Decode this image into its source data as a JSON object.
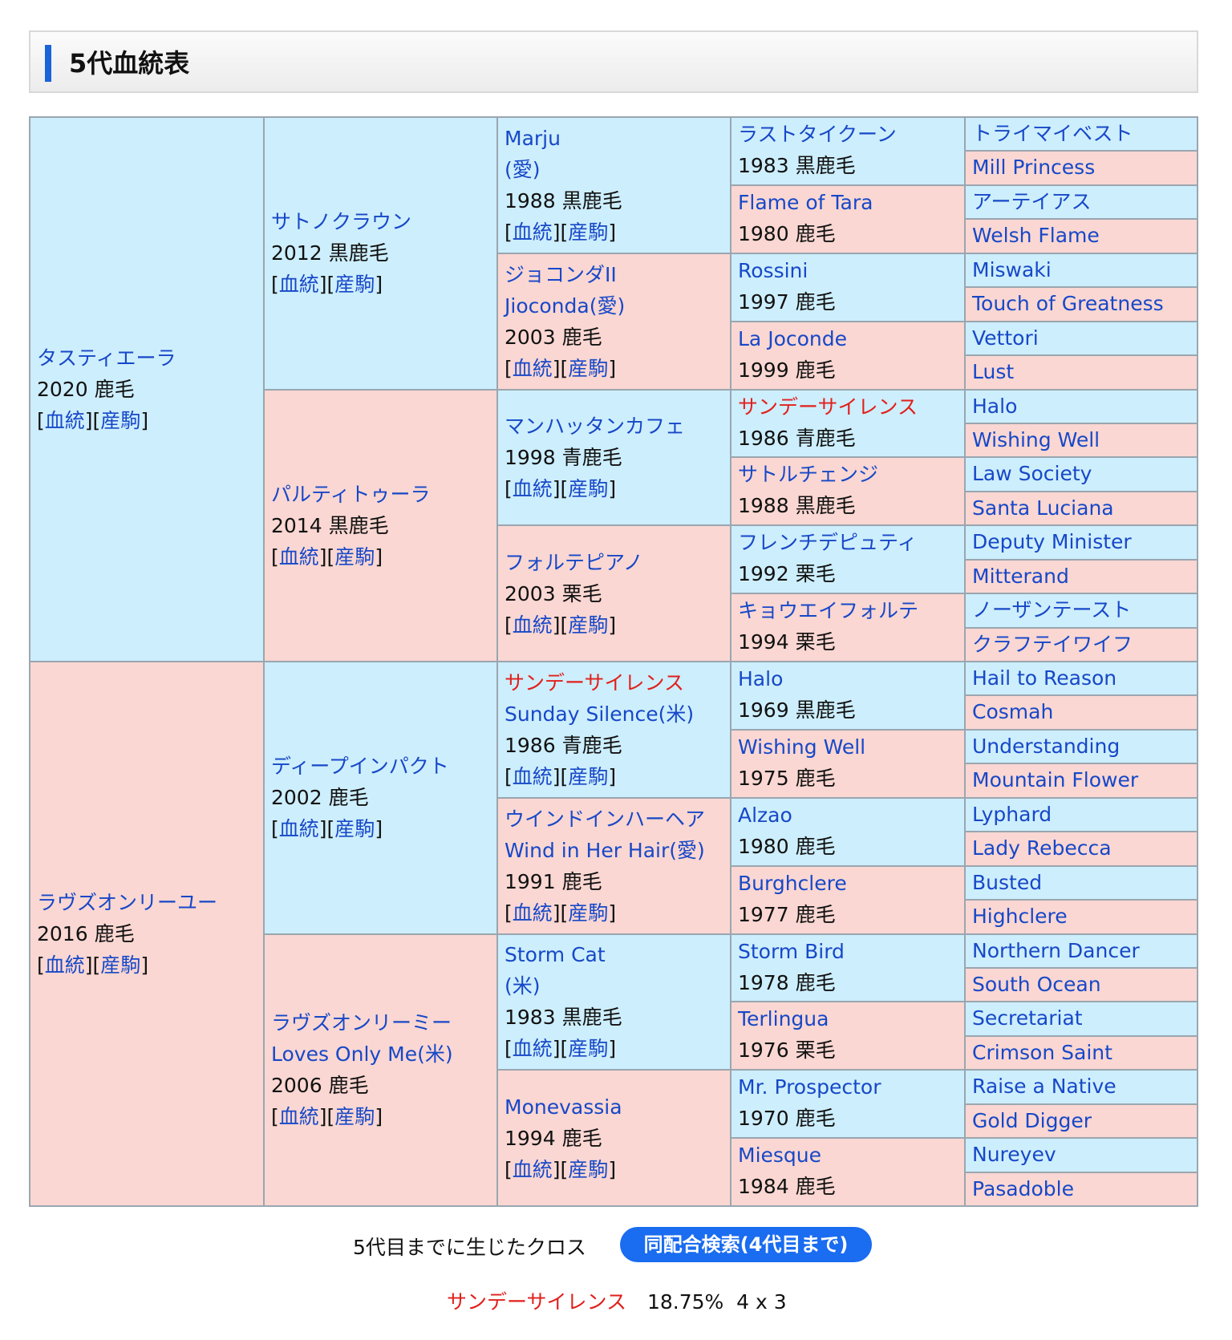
{
  "title": "5代血統表",
  "links": {
    "pedigree": "血統",
    "offspring": "産駒"
  },
  "gen1": [
    {
      "name": "タスティエーラ",
      "info": "2020 鹿毛"
    },
    {
      "name": "ラヴズオンリーユー",
      "info": "2016 鹿毛"
    }
  ],
  "gen2": [
    {
      "name": "サトノクラウン",
      "info": "2012 黒鹿毛"
    },
    {
      "name": "パルティトゥーラ",
      "info": "2014 黒鹿毛"
    },
    {
      "name": "ディープインパクト",
      "info": "2002 鹿毛"
    },
    {
      "name": "ラヴズオンリーミー",
      "name2": "Loves Only Me(米)",
      "info": "2006 鹿毛"
    }
  ],
  "gen3": [
    {
      "name": "Marju",
      "name2": "(愛)",
      "info": "1988 黒鹿毛"
    },
    {
      "name": "ジョコンダII",
      "name2": "Jioconda(愛)",
      "info": "2003 鹿毛"
    },
    {
      "name": "マンハッタンカフェ",
      "info": "1998 青鹿毛"
    },
    {
      "name": "フォルテピアノ",
      "info": "2003 栗毛"
    },
    {
      "name": "サンデーサイレンス",
      "name2": "Sunday Silence(米)",
      "info": "1986 青鹿毛"
    },
    {
      "name": "ウインドインハーヘア",
      "name2": "Wind in Her Hair(愛)",
      "info": "1991 鹿毛"
    },
    {
      "name": "Storm Cat",
      "name2": "(米)",
      "info": "1983 黒鹿毛"
    },
    {
      "name": "Monevassia",
      "info": "1994 鹿毛"
    }
  ],
  "gen4": [
    {
      "name": "ラストタイクーン",
      "info": "1983 黒鹿毛"
    },
    {
      "name": "Flame of Tara",
      "info": "1980 鹿毛"
    },
    {
      "name": "Rossini",
      "info": "1997 鹿毛"
    },
    {
      "name": "La Joconde",
      "info": "1999 鹿毛"
    },
    {
      "name": "サンデーサイレンス",
      "info": "1986 青鹿毛"
    },
    {
      "name": "サトルチェンジ",
      "info": "1988 黒鹿毛"
    },
    {
      "name": "フレンチデピュティ",
      "info": "1992 栗毛"
    },
    {
      "name": "キョウエイフォルテ",
      "info": "1994 栗毛"
    },
    {
      "name": "Halo",
      "info": "1969 黒鹿毛"
    },
    {
      "name": "Wishing Well",
      "info": "1975 鹿毛"
    },
    {
      "name": "Alzao",
      "info": "1980 鹿毛"
    },
    {
      "name": "Burghclere",
      "info": "1977 鹿毛"
    },
    {
      "name": "Storm Bird",
      "info": "1978 鹿毛"
    },
    {
      "name": "Terlingua",
      "info": "1976 栗毛"
    },
    {
      "name": "Mr. Prospector",
      "info": "1970 鹿毛"
    },
    {
      "name": "Miesque",
      "info": "1984 鹿毛"
    }
  ],
  "gen5": [
    "トライマイベスト",
    "Mill Princess",
    "アーテイアス",
    "Welsh Flame",
    "Miswaki",
    "Touch of Greatness",
    "Vettori",
    "Lust",
    "Halo",
    "Wishing Well",
    "Law Society",
    "Santa Luciana",
    "Deputy Minister",
    "Mitterand",
    "ノーザンテースト",
    "クラフテイワイフ",
    "Hail to Reason",
    "Cosmah",
    "Understanding",
    "Mountain Flower",
    "Lyphard",
    "Lady Rebecca",
    "Busted",
    "Highclere",
    "Northern Dancer",
    "South Ocean",
    "Secretariat",
    "Crimson Saint",
    "Raise a Native",
    "Gold Digger",
    "Nureyev",
    "Pasadoble"
  ],
  "cross": {
    "label": "5代目までに生じたクロス",
    "button": "同配合検索(4代目まで)",
    "horse": "サンデーサイレンス",
    "value": "18.75%  4 x 3"
  },
  "colors": {
    "male_bg": "#cdeefc",
    "female_bg": "#fad7d2",
    "link": "#1748c8",
    "cross_highlight": "#e1201c",
    "button": "#1a6cf0"
  }
}
